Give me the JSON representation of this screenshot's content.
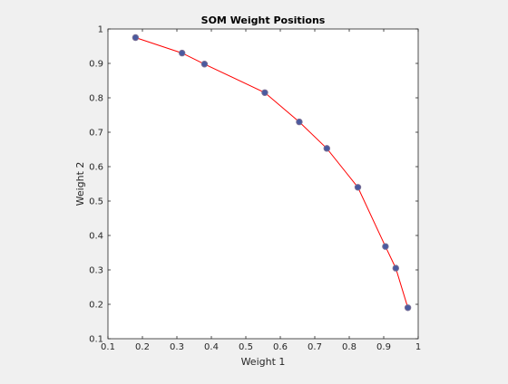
{
  "chart_data": {
    "type": "line",
    "title": "SOM Weight Positions",
    "xlabel": "Weight 1",
    "ylabel": "Weight 2",
    "xlim": [
      0.1,
      1.0
    ],
    "ylim": [
      0.1,
      1.0
    ],
    "xticks": [
      "0.1",
      "0.2",
      "0.3",
      "0.4",
      "0.5",
      "0.6",
      "0.7",
      "0.8",
      "0.9",
      "1"
    ],
    "yticks": [
      "0.1",
      "0.2",
      "0.3",
      "0.4",
      "0.5",
      "0.6",
      "0.7",
      "0.8",
      "0.9",
      "1"
    ],
    "grid": false,
    "series": [
      {
        "x": [
          0.18,
          0.315,
          0.38,
          0.555,
          0.655,
          0.735,
          0.825,
          0.905,
          0.935,
          0.97
        ],
        "y": [
          0.975,
          0.93,
          0.898,
          0.815,
          0.73,
          0.653,
          0.54,
          0.368,
          0.305,
          0.19
        ],
        "line_color": "#ff0000",
        "marker_color": "#4a5aa0",
        "marker_edge": "#7a6f95"
      }
    ]
  }
}
